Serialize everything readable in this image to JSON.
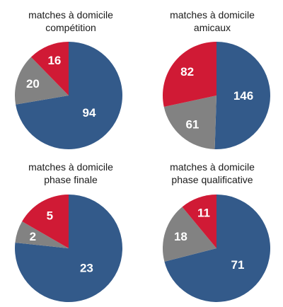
{
  "colors": {
    "blue": "#335a8a",
    "gray": "#828282",
    "red": "#d01a35"
  },
  "chart_data": [
    {
      "type": "pie",
      "title_lines": [
        "matches à domicile",
        "compétition"
      ],
      "slices": [
        {
          "value": 94,
          "label": "94",
          "color": "#335a8a"
        },
        {
          "value": 20,
          "label": "20",
          "color": "#828282"
        },
        {
          "value": 16,
          "label": "16",
          "color": "#d01a35"
        }
      ]
    },
    {
      "type": "pie",
      "title_lines": [
        "matches à domicile",
        "amicaux"
      ],
      "slices": [
        {
          "value": 146,
          "label": "146",
          "color": "#335a8a"
        },
        {
          "value": 61,
          "label": "61",
          "color": "#828282"
        },
        {
          "value": 82,
          "label": "82",
          "color": "#d01a35"
        }
      ]
    },
    {
      "type": "pie",
      "title_lines": [
        "matches à domicile",
        "phase finale"
      ],
      "slices": [
        {
          "value": 23,
          "label": "23",
          "color": "#335a8a"
        },
        {
          "value": 2,
          "label": "2",
          "color": "#828282"
        },
        {
          "value": 5,
          "label": "5",
          "color": "#d01a35"
        }
      ]
    },
    {
      "type": "pie",
      "title_lines": [
        "matches à domicile",
        "phase qualificative"
      ],
      "slices": [
        {
          "value": 71,
          "label": "71",
          "color": "#335a8a"
        },
        {
          "value": 18,
          "label": "18",
          "color": "#828282"
        },
        {
          "value": 11,
          "label": "11",
          "color": "#d01a35"
        }
      ]
    }
  ]
}
